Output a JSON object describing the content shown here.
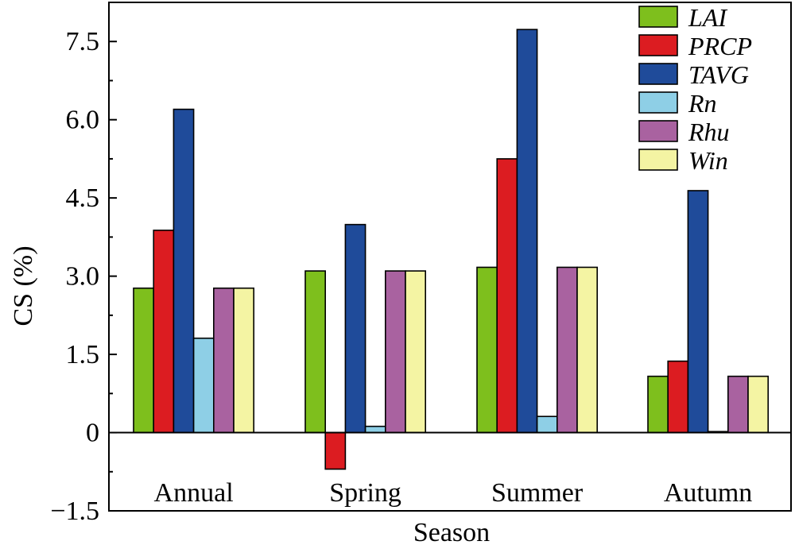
{
  "chart_data": {
    "type": "bar",
    "title": "",
    "xlabel": "Season",
    "ylabel": "CS (%)",
    "ylim": [
      -1.5,
      8.25
    ],
    "yticks": [
      -1.5,
      0,
      1.5,
      3.0,
      4.5,
      6.0,
      7.5
    ],
    "ytick_labels": [
      "−1.5",
      "0",
      "1.5",
      "3.0",
      "4.5",
      "6.0",
      "7.5"
    ],
    "categories": [
      "Annual",
      "Spring",
      "Summer",
      "Autumn"
    ],
    "legend_position": "top-right",
    "grid": false,
    "series": [
      {
        "name": "LAI",
        "color": "#7ebf1d",
        "values": [
          2.77,
          3.1,
          3.17,
          1.08
        ]
      },
      {
        "name": "PRCP",
        "color": "#dc1c21",
        "values": [
          3.88,
          -0.7,
          5.25,
          1.37
        ]
      },
      {
        "name": "TAVG",
        "color": "#1f4b9a",
        "values": [
          6.2,
          3.99,
          7.73,
          4.64
        ]
      },
      {
        "name": "Rn",
        "color": "#8ecfe6",
        "values": [
          1.81,
          0.12,
          0.31,
          0.02
        ]
      },
      {
        "name": "Rhu",
        "color": "#a962a0",
        "values": [
          2.77,
          3.1,
          3.17,
          1.08
        ]
      },
      {
        "name": "Win",
        "color": "#f4f4a3",
        "values": [
          2.77,
          3.1,
          3.17,
          1.08
        ]
      }
    ]
  }
}
